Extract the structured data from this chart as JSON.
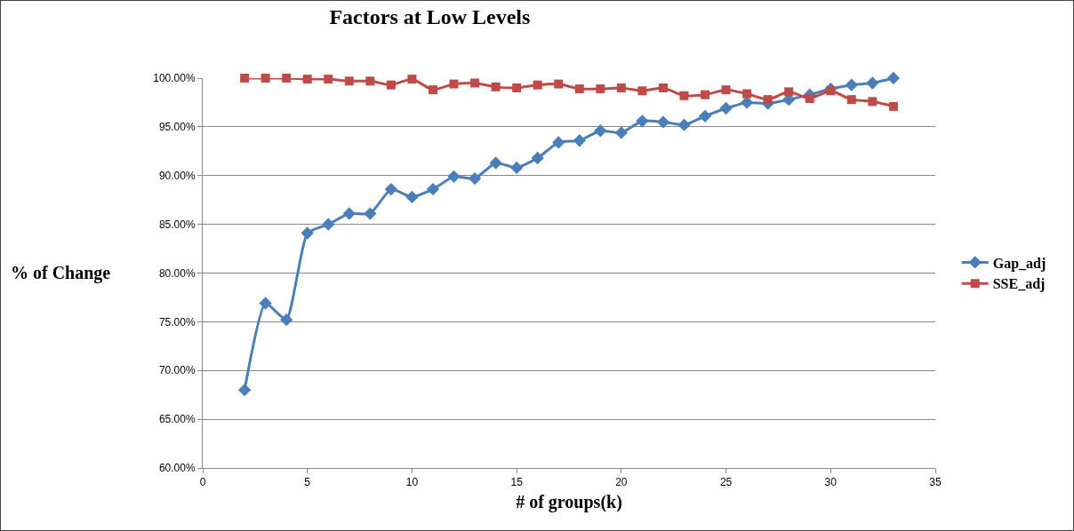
{
  "chart_data": {
    "type": "line",
    "title": "Factors at Low Levels",
    "xlabel": "# of groups(k)",
    "ylabel": "% of Change",
    "x": [
      2,
      3,
      4,
      5,
      6,
      7,
      8,
      9,
      10,
      11,
      12,
      13,
      14,
      15,
      16,
      17,
      18,
      19,
      20,
      21,
      22,
      23,
      24,
      25,
      26,
      27,
      28,
      29,
      30,
      31,
      32,
      33
    ],
    "series": [
      {
        "name": "Gap_adj",
        "color": "#4a7ebb",
        "marker": "diamond",
        "values": [
          68.0,
          76.9,
          75.2,
          84.1,
          85.0,
          86.1,
          86.1,
          88.6,
          87.8,
          88.6,
          89.9,
          89.7,
          91.3,
          90.8,
          91.8,
          93.4,
          93.6,
          94.6,
          94.4,
          95.6,
          95.5,
          95.2,
          96.1,
          96.9,
          97.5,
          97.4,
          97.8,
          98.3,
          98.9,
          99.3,
          99.5,
          100.0
        ]
      },
      {
        "name": "SSE_adj",
        "color": "#be4b48",
        "marker": "square",
        "values": [
          100.0,
          100.0,
          100.0,
          99.9,
          99.9,
          99.7,
          99.7,
          99.3,
          99.9,
          98.8,
          99.4,
          99.5,
          99.1,
          99.0,
          99.3,
          99.4,
          98.9,
          98.9,
          99.0,
          98.7,
          99.0,
          98.2,
          98.3,
          98.8,
          98.4,
          97.8,
          98.6,
          97.9,
          98.7,
          97.8,
          97.6,
          97.1
        ]
      }
    ],
    "xlim": [
      0,
      35
    ],
    "xticks": [
      0,
      5,
      10,
      15,
      20,
      25,
      30,
      35
    ],
    "ylim": [
      60,
      100
    ],
    "yticks": [
      {
        "value": 60,
        "label": "60.00%"
      },
      {
        "value": 65,
        "label": "65.00%"
      },
      {
        "value": 70,
        "label": "70.00%"
      },
      {
        "value": 75,
        "label": "75.00%"
      },
      {
        "value": 80,
        "label": "80.00%"
      },
      {
        "value": 85,
        "label": "85.00%"
      },
      {
        "value": 90,
        "label": "90.00%"
      },
      {
        "value": 95,
        "label": "95.00%"
      },
      {
        "value": 100,
        "label": "100.00%"
      }
    ],
    "grid": "y",
    "legend": "right",
    "line_style": "solid"
  }
}
